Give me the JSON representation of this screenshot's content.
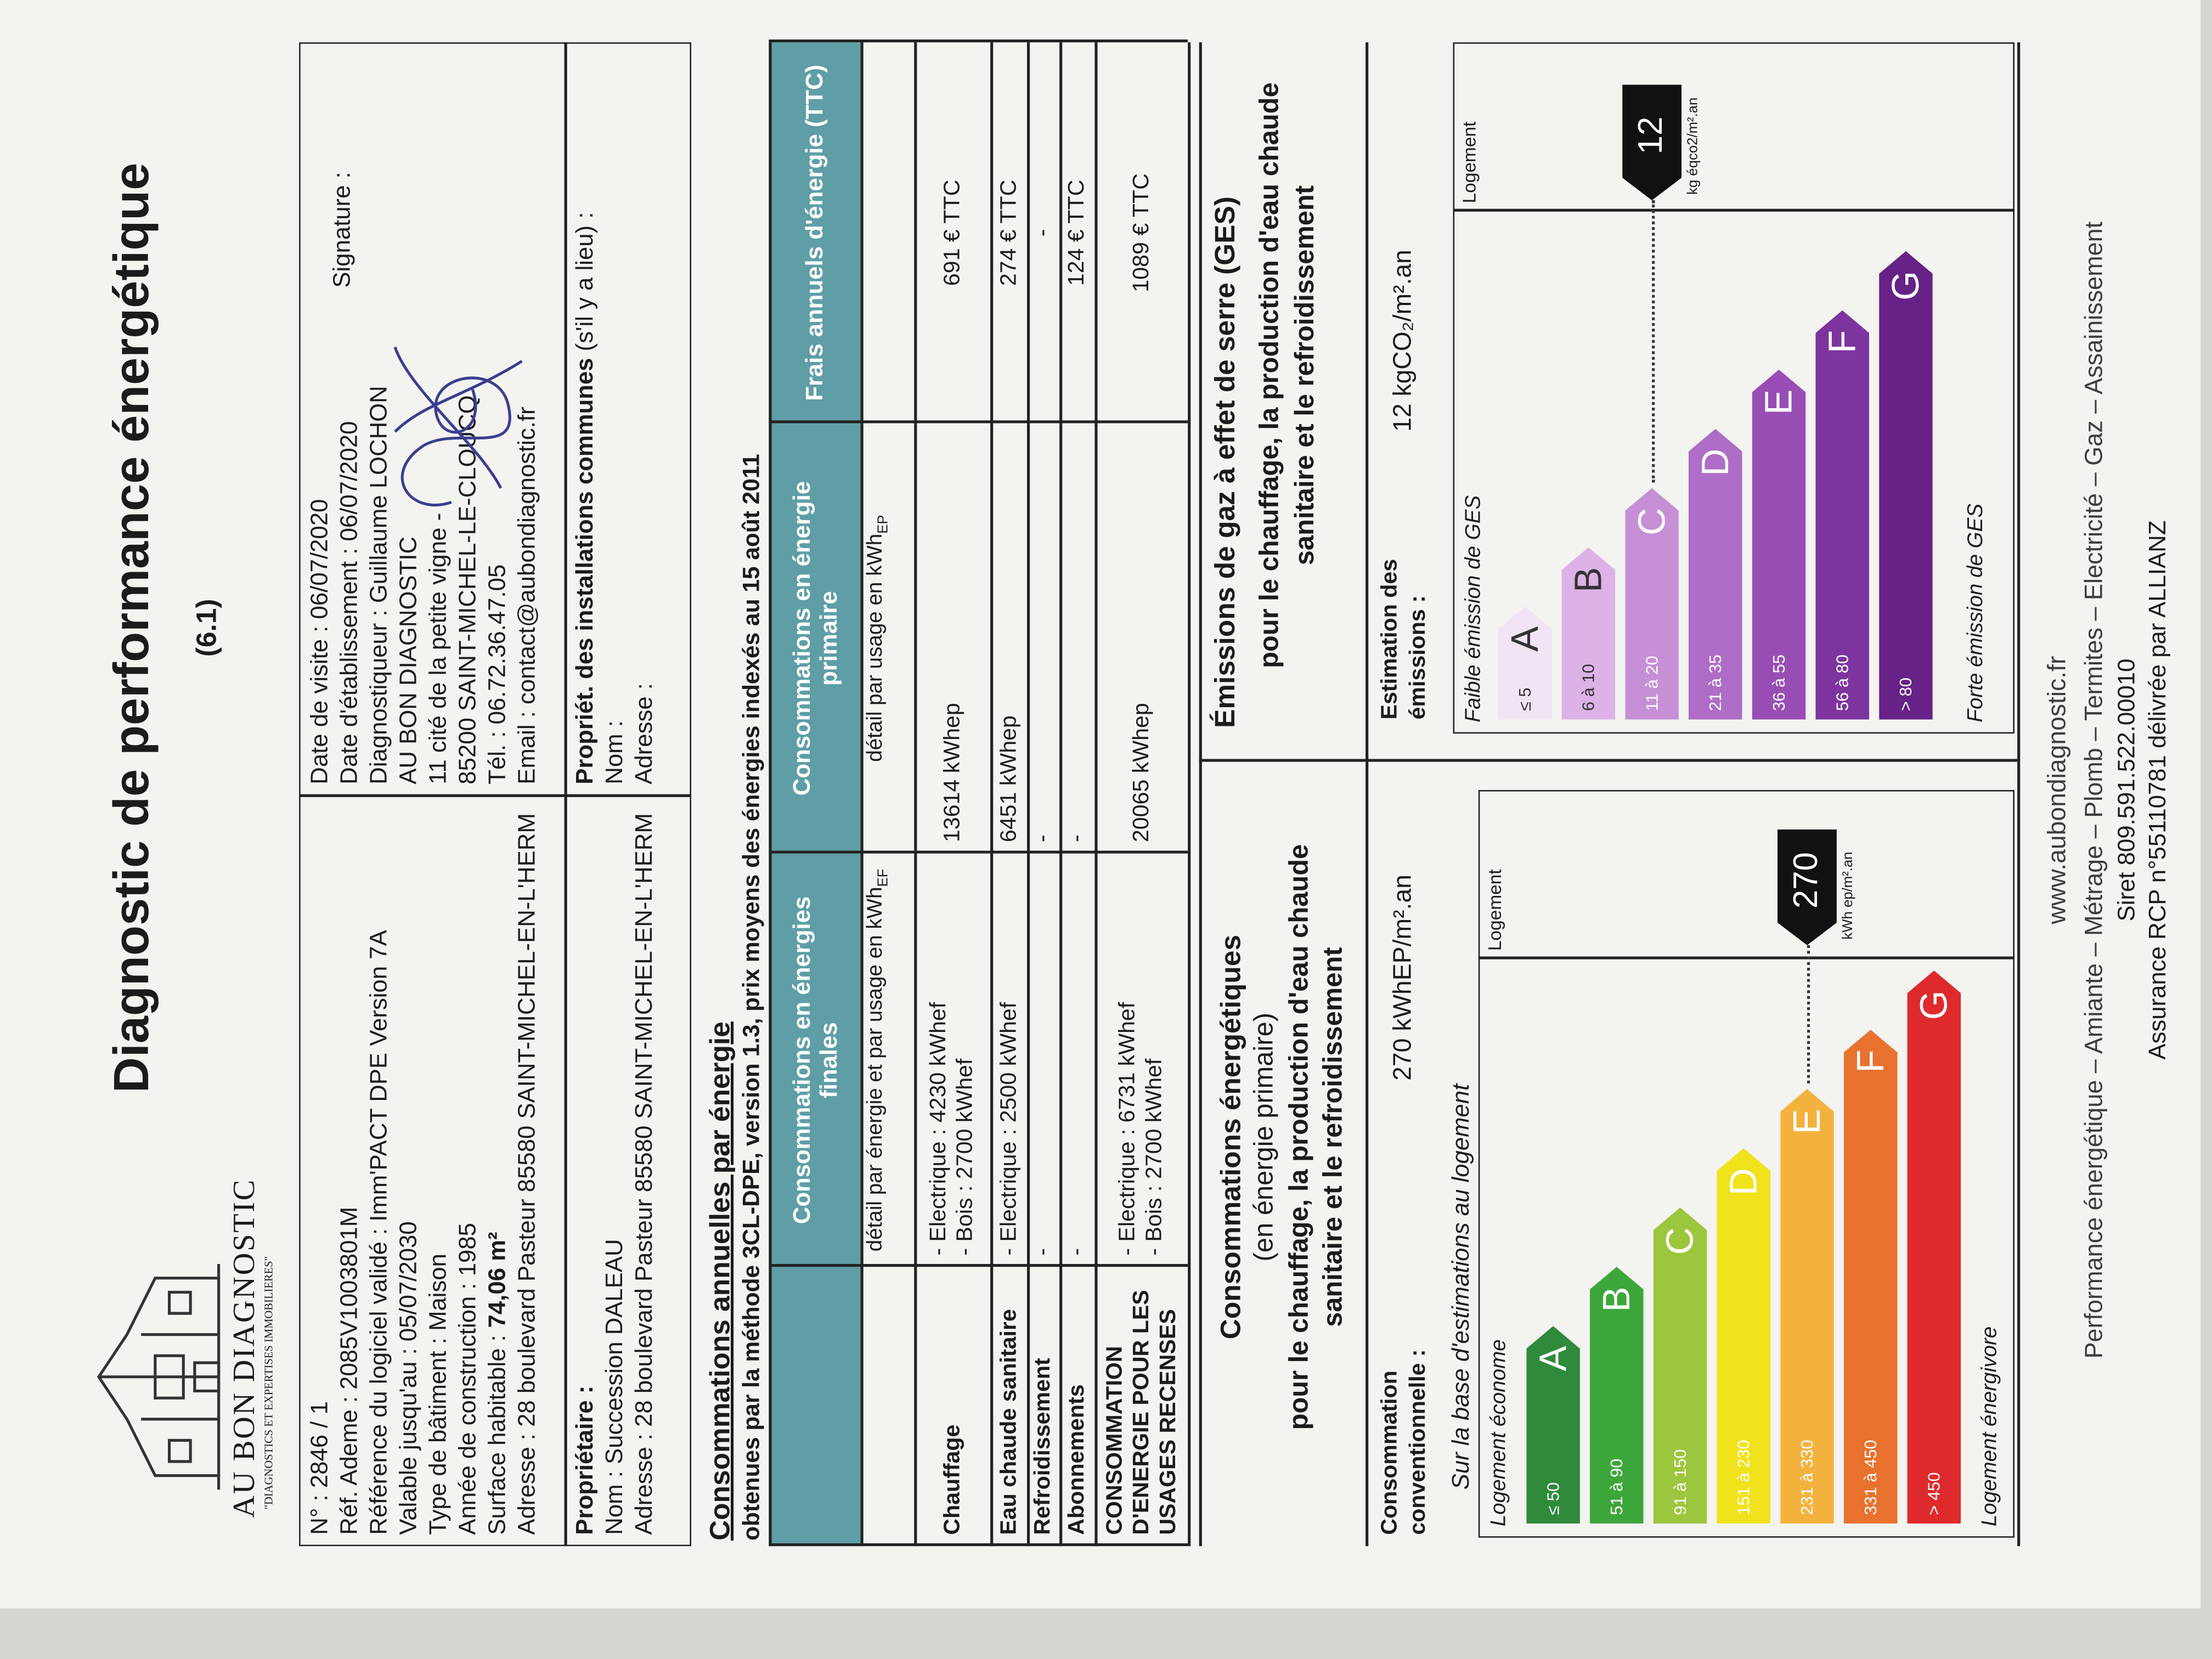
{
  "header": {
    "brand": "AU BON DIAGNOSTIC",
    "tagline": "\"DIAGNOSTICS ET EXPERTISES IMMOBILIERES\"",
    "title": "Diagnostic de performance énergétique",
    "version": "(6.1)"
  },
  "info": {
    "general": [
      "N° : 2846 / 1",
      "Réf. Ademe : 2085V1003801M",
      "Référence du logiciel validé : Imm'PACT DPE Version 7A",
      "Valable jusqu'au : 05/07/2030",
      "Type de bâtiment : Maison",
      "Année de construction : 1985"
    ],
    "surface": {
      "label": "Surface habitable :",
      "value": "74,06 m²"
    },
    "address": "Adresse : 28 boulevard Pasteur 85580 SAINT-MICHEL-EN-L'HERM",
    "diagnostician": [
      "Date de visite : 06/07/2020",
      "Date d'établissement : 06/07/2020",
      "Diagnostiqueur : Guillaume LOCHON",
      "AU BON DIAGNOSTIC",
      "11 cité de la petite vigne -",
      "85200 SAINT-MICHEL-LE-CLOUCQ",
      "Tél. : 06.72.36.47.05",
      "Email : contact@aubondiagnostic.fr"
    ],
    "signature_label": "Signature :",
    "owner": {
      "title": "Propriétaire :",
      "name": "Nom : Succession DALEAU",
      "address": "Adresse : 28 boulevard Pasteur 85580 SAINT-MICHEL-EN-L'HERM"
    },
    "common": {
      "title": "Propriét. des installations communes",
      "note": "(s'il y a lieu) :",
      "name": "Nom :",
      "address": "Adresse :"
    }
  },
  "consumption_table": {
    "title": "Consommations annuelles par énergie",
    "subtitle": "obtenues par la méthode 3CL-DPE, version 1.3, prix moyens des énergies indexés au 15 août 2011",
    "headers": {
      "final": "Consommations en énergies finales",
      "primary": "Consommations en énergie primaire",
      "cost": "Frais annuels d'énergie (TTC)"
    },
    "detail": {
      "final": "détail par énergie et par usage en kWh",
      "final_sub": "EF",
      "primary": "détail par usage en kWh",
      "primary_sub": "EP"
    },
    "rows": [
      {
        "label": "Chauffage",
        "final": [
          "- Electrique : 4230 kWhef",
          "- Bois : 2700 kWhef"
        ],
        "primary": "13614 kWhep",
        "cost": "691 € TTC"
      },
      {
        "label": "Eau chaude sanitaire",
        "final": [
          "- Electrique : 2500 kWhef"
        ],
        "primary": "6451 kWhep",
        "cost": "274 € TTC"
      },
      {
        "label": "Refroidissement",
        "final": [
          "-"
        ],
        "primary": "-",
        "cost": "-"
      },
      {
        "label": "Abonnements",
        "final": [
          "-"
        ],
        "primary": "-",
        "cost": "124 € TTC"
      },
      {
        "label": "CONSOMMATION D'ENERGIE POUR LES USAGES RECENSES",
        "final": [
          "- Electrique : 6731 kWhef",
          "- Bois : 2700 kWhef"
        ],
        "primary": "20065 kWhep",
        "cost": "1089 € TTC"
      }
    ]
  },
  "energy": {
    "heading": "Consommations énergétiques",
    "subheading": "(en énergie primaire)",
    "scope": "pour le chauffage, la production d'eau chaude sanitaire et le refroidissement",
    "estimate_label": "Consommation conventionnelle :",
    "estimate_value": "270 kWhEP/m².an",
    "basis": "Sur la base d'estimations au logement",
    "top_label": "Logement économe",
    "bottom_label": "Logement énergivore",
    "column": "Logement",
    "classes": [
      {
        "range": "≤ 50",
        "letter": "A",
        "color": "#2f8a3b"
      },
      {
        "range": "51 à 90",
        "letter": "B",
        "color": "#3da63a"
      },
      {
        "range": "91 à 150",
        "letter": "C",
        "color": "#9cc63d"
      },
      {
        "range": "151 à 230",
        "letter": "D",
        "color": "#f0e21b"
      },
      {
        "range": "231 à 330",
        "letter": "E",
        "color": "#f3b23d"
      },
      {
        "range": "331 à 450",
        "letter": "F",
        "color": "#e8722e"
      },
      {
        "range": "> 450",
        "letter": "G",
        "color": "#de2a2c"
      }
    ],
    "marker": "270",
    "marker_unit": "kWh ep/m².an"
  },
  "ges": {
    "heading": "Émissions de gaz à effet de serre (GES)",
    "scope": "pour le chauffage, la production d'eau chaude sanitaire et le refroidissement",
    "estimate_label": "Estimation des émissions :",
    "estimate_value": "12 kgCO₂/m².an",
    "top_label": "Faible émission de GES",
    "bottom_label": "Forte émission de GES",
    "column": "Logement",
    "classes": [
      {
        "range": "≤ 5",
        "letter": "A",
        "color": "#f1e4f4"
      },
      {
        "range": "6 à 10",
        "letter": "B",
        "color": "#ddb2e7"
      },
      {
        "range": "11 à 20",
        "letter": "C",
        "color": "#c68fd6"
      },
      {
        "range": "21 à 35",
        "letter": "D",
        "color": "#ae6dc6"
      },
      {
        "range": "36 à 55",
        "letter": "E",
        "color": "#984db4"
      },
      {
        "range": "56 à 80",
        "letter": "F",
        "color": "#7d349f"
      },
      {
        "range": "> 80",
        "letter": "G",
        "color": "#662287"
      }
    ],
    "marker": "12",
    "marker_unit": "kg éqco2/m².an"
  },
  "footer": {
    "website": "www.aubondiagnostic.fr",
    "services": "Performance énergétique – Amiante – Métrage – Plomb – Termites – Electricité – Gaz – Assainissement",
    "siret": "Siret 809.591.522.00010",
    "insurance": "Assurance RCP n°55110781 délivrée par ALLIANZ"
  }
}
